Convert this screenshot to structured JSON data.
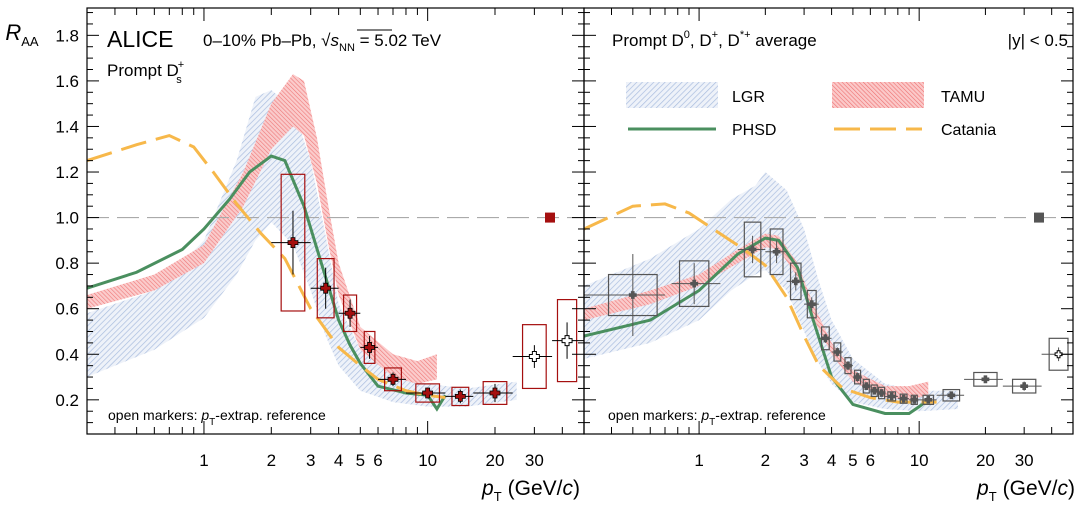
{
  "colors": {
    "ds": "#a50f0f",
    "avg": "#555555",
    "lgr": "#b7c7e3",
    "tamu": "#f08080",
    "phsd": "#4a8f5f",
    "catania": "#f7b84a",
    "ref_line": "#aaaaaa"
  },
  "axis": {
    "y_label_main": "R",
    "y_label_sub": "AA",
    "x_label_main": "p",
    "x_label_sub": "T",
    "x_label_units": "(GeV/",
    "x_label_c": "c",
    "x_label_close": ")",
    "y_ticks": [
      "0.2",
      "0.4",
      "0.6",
      "0.8",
      "1.0",
      "1.2",
      "1.4",
      "1.6",
      "1.8"
    ],
    "x_ticks": [
      "1",
      "2",
      "3",
      "4",
      "5",
      "6",
      "10",
      "20",
      "30"
    ]
  },
  "left": {
    "experiment": "ALICE",
    "system_pre": "0–10% Pb–Pb, ",
    "sqrt": "√",
    "s": "s",
    "nn": "NN",
    "energy": " = 5.02 TeV",
    "species": "Prompt D",
    "species_sup": "+",
    "species_sub": "s",
    "footnote_pre": "open markers: ",
    "footnote_p": "p",
    "footnote_t": "T",
    "footnote_post": "-extrap. reference"
  },
  "right": {
    "title_a": "Prompt D",
    "title_a_sup": "0",
    "title_b": ", D",
    "title_b_sup": "+",
    "title_c": ", D",
    "title_c_sup": "*+",
    "title_d": " average",
    "rapidity": "|y| < 0.5",
    "footnote_pre": "open markers: ",
    "footnote_p": "p",
    "footnote_t": "T",
    "footnote_post": "-extrap. reference"
  },
  "legend": {
    "lgr": "LGR",
    "tamu": "TAMU",
    "phsd": "PHSD",
    "catania": "Catania"
  },
  "chart_data": [
    {
      "type": "scatter",
      "panel": "left",
      "xlabel": "pT (GeV/c)",
      "ylabel": "RAA",
      "xscale": "log",
      "ylim": [
        0.05,
        1.92
      ],
      "series": [
        {
          "name": "Prompt Ds+",
          "points": [
            {
              "x": 2.5,
              "y": 0.89,
              "xlo": 2.0,
              "xhi": 3.0,
              "stat": 0.14,
              "syst": 0.3,
              "open": false
            },
            {
              "x": 3.5,
              "y": 0.69,
              "xlo": 3.0,
              "xhi": 4.0,
              "stat": 0.09,
              "syst": 0.13,
              "open": false
            },
            {
              "x": 4.5,
              "y": 0.58,
              "xlo": 4.0,
              "xhi": 5.0,
              "stat": 0.06,
              "syst": 0.08,
              "open": false
            },
            {
              "x": 5.5,
              "y": 0.43,
              "xlo": 5.0,
              "xhi": 6.0,
              "stat": 0.05,
              "syst": 0.07,
              "open": false
            },
            {
              "x": 7.0,
              "y": 0.29,
              "xlo": 6.0,
              "xhi": 8.0,
              "stat": 0.03,
              "syst": 0.05,
              "open": false
            },
            {
              "x": 10.0,
              "y": 0.23,
              "xlo": 8.0,
              "xhi": 12.0,
              "stat": 0.02,
              "syst": 0.04,
              "open": false
            },
            {
              "x": 14.0,
              "y": 0.215,
              "xlo": 12.0,
              "xhi": 16.0,
              "stat": 0.03,
              "syst": 0.04,
              "open": false
            },
            {
              "x": 20.0,
              "y": 0.23,
              "xlo": 16.0,
              "xhi": 24.0,
              "stat": 0.04,
              "syst": 0.05,
              "open": false
            },
            {
              "x": 30.0,
              "y": 0.39,
              "xlo": 24.0,
              "xhi": 36.0,
              "stat": 0.05,
              "syst": 0.14,
              "open": true
            },
            {
              "x": 42.0,
              "y": 0.46,
              "xlo": 36.0,
              "xhi": 50.0,
              "stat": 0.08,
              "syst": 0.18,
              "open": true
            }
          ]
        }
      ],
      "normalization_marker": {
        "y": 1.0
      }
    },
    {
      "type": "scatter",
      "panel": "right",
      "xlabel": "pT (GeV/c)",
      "ylabel": "RAA",
      "xscale": "log",
      "ylim": [
        0.05,
        1.92
      ],
      "series": [
        {
          "name": "Prompt D0, D+, D*+ average",
          "points": [
            {
              "x": 0.5,
              "y": 0.66,
              "xlo": 0.3,
              "xhi": 0.7,
              "stat": 0.18,
              "syst": 0.09,
              "open": false
            },
            {
              "x": 0.95,
              "y": 0.71,
              "xlo": 0.75,
              "xhi": 1.25,
              "stat": 0.09,
              "syst": 0.1,
              "open": false
            },
            {
              "x": 1.75,
              "y": 0.86,
              "xlo": 1.5,
              "xhi": 2.0,
              "stat": 0.06,
              "syst": 0.12,
              "open": false
            },
            {
              "x": 2.25,
              "y": 0.85,
              "xlo": 2.0,
              "xhi": 2.5,
              "stat": 0.05,
              "syst": 0.1,
              "open": false
            },
            {
              "x": 2.75,
              "y": 0.72,
              "xlo": 2.5,
              "xhi": 3.0,
              "stat": 0.04,
              "syst": 0.08,
              "open": false
            },
            {
              "x": 3.25,
              "y": 0.62,
              "xlo": 3.0,
              "xhi": 3.5,
              "stat": 0.03,
              "syst": 0.06,
              "open": false
            },
            {
              "x": 3.75,
              "y": 0.47,
              "xlo": 3.5,
              "xhi": 4.0,
              "stat": 0.02,
              "syst": 0.05,
              "open": false
            },
            {
              "x": 4.25,
              "y": 0.41,
              "xlo": 4.0,
              "xhi": 4.5,
              "stat": 0.02,
              "syst": 0.04,
              "open": false
            },
            {
              "x": 4.75,
              "y": 0.35,
              "xlo": 4.5,
              "xhi": 5.0,
              "stat": 0.02,
              "syst": 0.035,
              "open": false
            },
            {
              "x": 5.25,
              "y": 0.3,
              "xlo": 5.0,
              "xhi": 5.5,
              "stat": 0.02,
              "syst": 0.03,
              "open": false
            },
            {
              "x": 5.75,
              "y": 0.26,
              "xlo": 5.5,
              "xhi": 6.0,
              "stat": 0.015,
              "syst": 0.03,
              "open": false
            },
            {
              "x": 6.25,
              "y": 0.24,
              "xlo": 6.0,
              "xhi": 6.5,
              "stat": 0.015,
              "syst": 0.025,
              "open": false
            },
            {
              "x": 6.75,
              "y": 0.23,
              "xlo": 6.5,
              "xhi": 7.0,
              "stat": 0.015,
              "syst": 0.025,
              "open": false
            },
            {
              "x": 7.5,
              "y": 0.215,
              "xlo": 7.0,
              "xhi": 8.0,
              "stat": 0.012,
              "syst": 0.02,
              "open": false
            },
            {
              "x": 8.5,
              "y": 0.205,
              "xlo": 8.0,
              "xhi": 9.0,
              "stat": 0.012,
              "syst": 0.02,
              "open": false
            },
            {
              "x": 9.5,
              "y": 0.2,
              "xlo": 9.0,
              "xhi": 10.0,
              "stat": 0.012,
              "syst": 0.02,
              "open": false
            },
            {
              "x": 11.0,
              "y": 0.2,
              "xlo": 10.0,
              "xhi": 12.0,
              "stat": 0.012,
              "syst": 0.02,
              "open": false
            },
            {
              "x": 14.0,
              "y": 0.22,
              "xlo": 12.0,
              "xhi": 16.0,
              "stat": 0.012,
              "syst": 0.025,
              "open": false
            },
            {
              "x": 20.0,
              "y": 0.29,
              "xlo": 16.0,
              "xhi": 24.0,
              "stat": 0.015,
              "syst": 0.03,
              "open": false
            },
            {
              "x": 30.0,
              "y": 0.26,
              "xlo": 24.0,
              "xhi": 36.0,
              "stat": 0.02,
              "syst": 0.03,
              "open": false
            },
            {
              "x": 43.0,
              "y": 0.4,
              "xlo": 36.0,
              "xhi": 50.0,
              "stat": 0.03,
              "syst": 0.07,
              "open": true
            }
          ]
        }
      ],
      "normalization_marker": {
        "y": 1.0
      }
    },
    {
      "type": "line",
      "panel": "left",
      "name": "PHSD",
      "points": [
        [
          0.3,
          0.69
        ],
        [
          0.5,
          0.76
        ],
        [
          0.8,
          0.86
        ],
        [
          1.0,
          0.95
        ],
        [
          1.3,
          1.08
        ],
        [
          1.6,
          1.2
        ],
        [
          2.0,
          1.27
        ],
        [
          2.3,
          1.25
        ],
        [
          2.8,
          1.05
        ],
        [
          3.3,
          0.82
        ],
        [
          4.0,
          0.55
        ],
        [
          4.5,
          0.44
        ],
        [
          5.0,
          0.36
        ],
        [
          6.0,
          0.26
        ],
        [
          8.0,
          0.23
        ],
        [
          10.0,
          0.22
        ],
        [
          11.0,
          0.16
        ],
        [
          12.0,
          0.22
        ]
      ]
    },
    {
      "type": "line",
      "panel": "left",
      "name": "Catania",
      "points": [
        [
          0.3,
          1.25
        ],
        [
          0.5,
          1.32
        ],
        [
          0.7,
          1.36
        ],
        [
          0.9,
          1.31
        ],
        [
          1.1,
          1.2
        ],
        [
          1.4,
          1.06
        ],
        [
          1.8,
          0.93
        ],
        [
          2.3,
          0.82
        ],
        [
          3.0,
          0.6
        ],
        [
          4.0,
          0.43
        ],
        [
          5.0,
          0.35
        ],
        [
          6.0,
          0.29
        ],
        [
          8.0,
          0.24
        ],
        [
          10.0,
          0.22
        ],
        [
          12.0,
          0.21
        ]
      ]
    },
    {
      "type": "area",
      "panel": "left",
      "name": "LGR",
      "upper": [
        [
          0.3,
          0.58
        ],
        [
          0.6,
          0.68
        ],
        [
          1.0,
          0.9
        ],
        [
          1.4,
          1.25
        ],
        [
          1.7,
          1.53
        ],
        [
          2.0,
          1.56
        ],
        [
          2.5,
          1.48
        ],
        [
          3.0,
          1.25
        ],
        [
          3.5,
          0.92
        ],
        [
          4.0,
          0.62
        ],
        [
          5.0,
          0.42
        ],
        [
          7.0,
          0.31
        ],
        [
          10.0,
          0.27
        ],
        [
          15.0,
          0.25
        ],
        [
          25.0,
          0.28
        ]
      ],
      "lower": [
        [
          0.3,
          0.3
        ],
        [
          0.6,
          0.42
        ],
        [
          1.0,
          0.56
        ],
        [
          1.4,
          0.75
        ],
        [
          1.7,
          0.9
        ],
        [
          2.0,
          0.98
        ],
        [
          2.5,
          0.88
        ],
        [
          3.0,
          0.68
        ],
        [
          3.5,
          0.48
        ],
        [
          4.0,
          0.35
        ],
        [
          5.0,
          0.24
        ],
        [
          7.0,
          0.19
        ],
        [
          10.0,
          0.17
        ],
        [
          15.0,
          0.17
        ],
        [
          25.0,
          0.2
        ]
      ]
    },
    {
      "type": "area",
      "panel": "left",
      "name": "TAMU",
      "upper": [
        [
          0.3,
          0.66
        ],
        [
          0.6,
          0.75
        ],
        [
          1.0,
          0.88
        ],
        [
          1.5,
          1.2
        ],
        [
          2.0,
          1.5
        ],
        [
          2.5,
          1.63
        ],
        [
          2.8,
          1.6
        ],
        [
          3.2,
          1.35
        ],
        [
          3.6,
          1.05
        ],
        [
          4.0,
          0.8
        ],
        [
          5.0,
          0.52
        ],
        [
          7.0,
          0.4
        ],
        [
          9.0,
          0.37
        ],
        [
          11.0,
          0.4
        ]
      ],
      "lower": [
        [
          0.3,
          0.6
        ],
        [
          0.6,
          0.68
        ],
        [
          1.0,
          0.8
        ],
        [
          1.5,
          1.05
        ],
        [
          2.0,
          1.3
        ],
        [
          2.5,
          1.4
        ],
        [
          2.8,
          1.36
        ],
        [
          3.2,
          1.15
        ],
        [
          3.6,
          0.88
        ],
        [
          4.0,
          0.66
        ],
        [
          5.0,
          0.42
        ],
        [
          7.0,
          0.3
        ],
        [
          9.0,
          0.27
        ],
        [
          11.0,
          0.29
        ]
      ]
    },
    {
      "type": "line",
      "panel": "right",
      "name": "PHSD",
      "points": [
        [
          0.3,
          0.48
        ],
        [
          0.6,
          0.55
        ],
        [
          1.0,
          0.68
        ],
        [
          1.5,
          0.84
        ],
        [
          2.0,
          0.91
        ],
        [
          2.3,
          0.9
        ],
        [
          2.8,
          0.78
        ],
        [
          3.3,
          0.55
        ],
        [
          4.0,
          0.3
        ],
        [
          5.0,
          0.18
        ],
        [
          7.0,
          0.14
        ],
        [
          9.0,
          0.14
        ],
        [
          10.0,
          0.17
        ],
        [
          11.0,
          0.2
        ]
      ]
    },
    {
      "type": "line",
      "panel": "right",
      "name": "Catania",
      "points": [
        [
          0.3,
          0.95
        ],
        [
          0.5,
          1.05
        ],
        [
          0.7,
          1.06
        ],
        [
          0.9,
          1.02
        ],
        [
          1.2,
          0.94
        ],
        [
          1.6,
          0.86
        ],
        [
          2.0,
          0.79
        ],
        [
          2.5,
          0.65
        ],
        [
          3.0,
          0.48
        ],
        [
          3.5,
          0.35
        ],
        [
          4.5,
          0.25
        ],
        [
          6.0,
          0.21
        ],
        [
          8.0,
          0.19
        ],
        [
          12.0,
          0.19
        ]
      ]
    },
    {
      "type": "area",
      "panel": "right",
      "name": "LGR",
      "upper": [
        [
          0.3,
          0.7
        ],
        [
          0.6,
          0.82
        ],
        [
          1.0,
          0.95
        ],
        [
          1.4,
          1.08
        ],
        [
          1.8,
          1.14
        ],
        [
          2.0,
          1.2
        ],
        [
          2.5,
          1.12
        ],
        [
          3.0,
          0.95
        ],
        [
          3.5,
          0.72
        ],
        [
          4.0,
          0.55
        ],
        [
          5.0,
          0.38
        ],
        [
          7.0,
          0.27
        ],
        [
          10.0,
          0.24
        ],
        [
          15.0,
          0.24
        ]
      ],
      "lower": [
        [
          0.3,
          0.38
        ],
        [
          0.6,
          0.45
        ],
        [
          1.0,
          0.55
        ],
        [
          1.4,
          0.68
        ],
        [
          1.8,
          0.75
        ],
        [
          2.0,
          0.77
        ],
        [
          2.5,
          0.68
        ],
        [
          3.0,
          0.5
        ],
        [
          3.5,
          0.36
        ],
        [
          4.0,
          0.27
        ],
        [
          5.0,
          0.19
        ],
        [
          7.0,
          0.16
        ],
        [
          10.0,
          0.15
        ],
        [
          15.0,
          0.16
        ]
      ]
    },
    {
      "type": "area",
      "panel": "right",
      "name": "TAMU",
      "upper": [
        [
          0.3,
          0.6
        ],
        [
          0.6,
          0.68
        ],
        [
          1.0,
          0.75
        ],
        [
          1.5,
          0.86
        ],
        [
          2.0,
          0.93
        ],
        [
          2.3,
          0.92
        ],
        [
          2.8,
          0.8
        ],
        [
          3.3,
          0.62
        ],
        [
          4.0,
          0.45
        ],
        [
          5.0,
          0.33
        ],
        [
          7.0,
          0.26
        ],
        [
          9.0,
          0.26
        ],
        [
          11.0,
          0.28
        ]
      ],
      "lower": [
        [
          0.3,
          0.55
        ],
        [
          0.6,
          0.62
        ],
        [
          1.0,
          0.7
        ],
        [
          1.5,
          0.8
        ],
        [
          2.0,
          0.87
        ],
        [
          2.3,
          0.86
        ],
        [
          2.8,
          0.74
        ],
        [
          3.3,
          0.56
        ],
        [
          4.0,
          0.4
        ],
        [
          5.0,
          0.28
        ],
        [
          7.0,
          0.21
        ],
        [
          9.0,
          0.2
        ],
        [
          11.0,
          0.22
        ]
      ]
    }
  ]
}
